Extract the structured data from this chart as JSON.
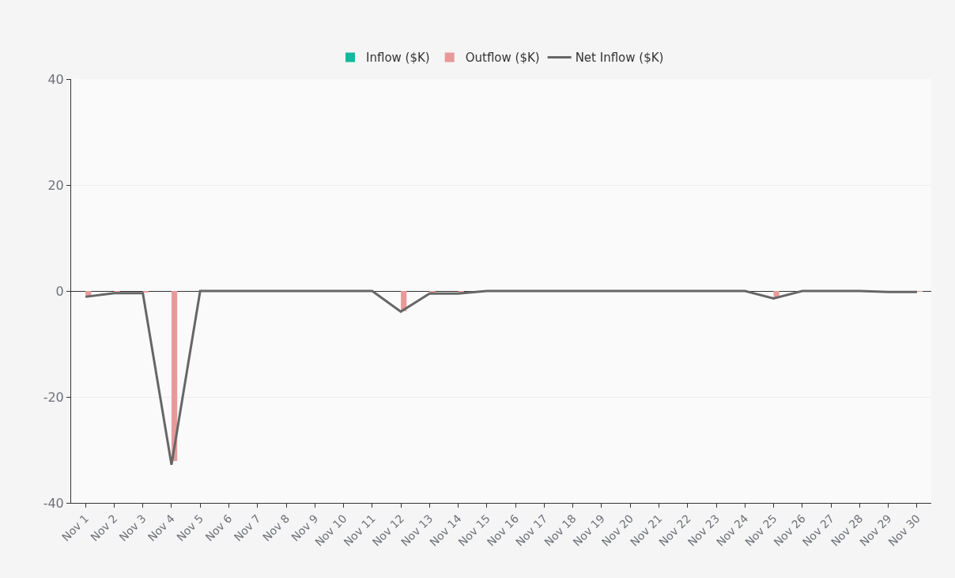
{
  "chart_data": {
    "type": "bar",
    "categories": [
      "Nov 1",
      "Nov 2",
      "Nov 3",
      "Nov 4",
      "Nov 5",
      "Nov 6",
      "Nov 7",
      "Nov 8",
      "Nov 9",
      "Nov 10",
      "Nov 11",
      "Nov 12",
      "Nov 13",
      "Nov 14",
      "Nov 15",
      "Nov 16",
      "Nov 17",
      "Nov 18",
      "Nov 19",
      "Nov 20",
      "Nov 21",
      "Nov 22",
      "Nov 23",
      "Nov 24",
      "Nov 25",
      "Nov 26",
      "Nov 27",
      "Nov 28",
      "Nov 29",
      "Nov 30"
    ],
    "series": [
      {
        "name": "Inflow ($K)",
        "color": "#14b89c",
        "values": [
          0,
          0,
          0,
          0,
          0,
          0,
          0,
          0,
          0,
          0,
          0,
          0,
          0,
          0,
          0,
          0,
          0,
          0,
          0,
          0,
          0,
          0,
          0,
          0,
          0,
          0,
          0,
          0,
          0,
          0
        ]
      },
      {
        "name": "Outflow ($K)",
        "color": "#e89a9a",
        "values": [
          -1.0,
          -0.3,
          -0.3,
          -32.1,
          0,
          0,
          0,
          0,
          0,
          0,
          0,
          -3.8,
          -0.4,
          -0.4,
          0,
          0,
          0,
          0,
          0,
          0,
          0,
          0,
          0,
          0,
          -1.3,
          0,
          0,
          0,
          0,
          -0.1
        ]
      },
      {
        "name": "Net Inflow ($K)",
        "type": "line",
        "color": "#666666",
        "values": [
          -1.1,
          -0.4,
          -0.4,
          -32.8,
          0,
          0,
          0,
          0,
          0,
          0,
          0,
          -3.9,
          -0.5,
          -0.5,
          0,
          0,
          0,
          0,
          0,
          0,
          0,
          0,
          0,
          0,
          -1.4,
          0,
          0,
          0,
          -0.2,
          -0.2
        ]
      }
    ],
    "ylim": [
      -40,
      40
    ],
    "yticks": [
      -40,
      -20,
      0,
      20,
      40
    ],
    "grid": "y",
    "legend": "top",
    "marker": "none",
    "line_style": "solid"
  }
}
